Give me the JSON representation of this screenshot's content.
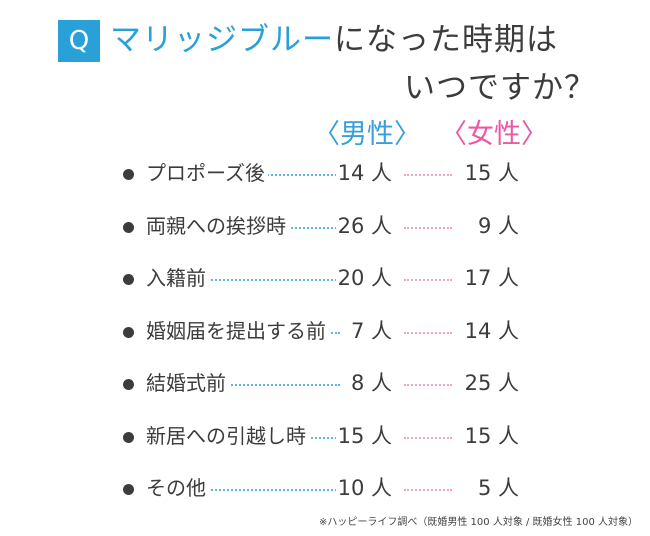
{
  "badge": "Q",
  "title": {
    "accent": "マリッジブルー",
    "line1_rest": "になった時期は",
    "line2": "いつですか？"
  },
  "headers": {
    "male": "〈男性〉",
    "female": "〈女性〉"
  },
  "colors": {
    "accent_blue": "#2aa0d8",
    "male": "#3a9fd8",
    "female": "#e85aa5",
    "text": "#3c3c3c"
  },
  "chart_data": {
    "type": "table",
    "unit": "人",
    "series": [
      {
        "name": "男性",
        "values": [
          14,
          26,
          20,
          7,
          8,
          15,
          10
        ]
      },
      {
        "name": "女性",
        "values": [
          15,
          9,
          17,
          14,
          25,
          15,
          5
        ]
      }
    ],
    "categories": [
      "プロポーズ後",
      "両親への挨拶時",
      "入籍前",
      "婚姻届を提出する前",
      "結婚式前",
      "新居への引越し時",
      "その他"
    ],
    "rows": [
      {
        "label": "プロポーズ後",
        "male": "14 人",
        "female": "15 人"
      },
      {
        "label": "両親への挨拶時",
        "male": "26 人",
        "female": "9 人"
      },
      {
        "label": "入籍前",
        "male": "20 人",
        "female": "17 人"
      },
      {
        "label": "婚姻届を提出する前",
        "male": "7 人",
        "female": "14 人"
      },
      {
        "label": "結婚式前",
        "male": "8 人",
        "female": "25 人"
      },
      {
        "label": "新居への引越し時",
        "male": "15 人",
        "female": "15 人"
      },
      {
        "label": "その他",
        "male": "10 人",
        "female": "5 人"
      }
    ]
  },
  "note": "※ハッピーライフ調べ（既婚男性 100 人対象 / 既婚女性 100 人対象）"
}
